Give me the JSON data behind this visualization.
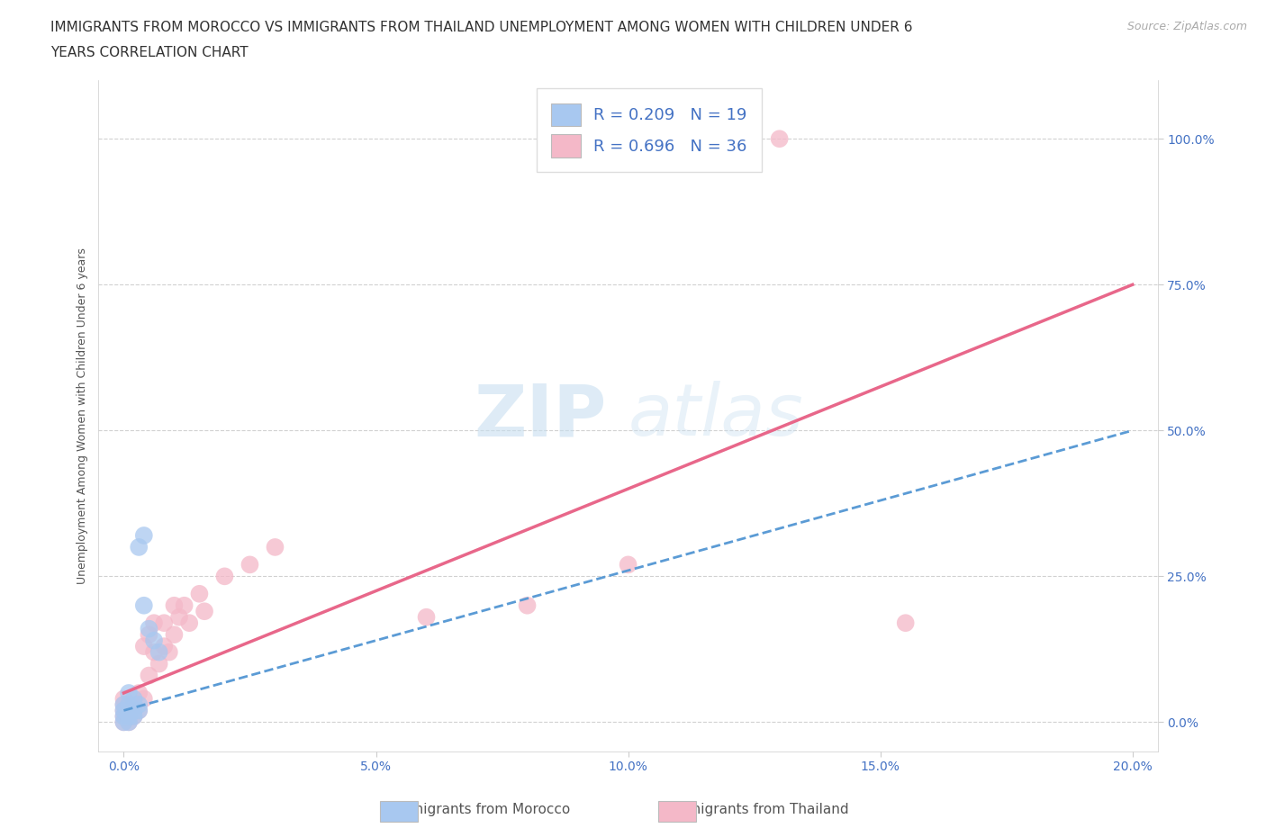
{
  "title_line1": "IMMIGRANTS FROM MOROCCO VS IMMIGRANTS FROM THAILAND UNEMPLOYMENT AMONG WOMEN WITH CHILDREN UNDER 6",
  "title_line2": "YEARS CORRELATION CHART",
  "source": "Source: ZipAtlas.com",
  "xlabel_ticks": [
    "0.0%",
    "5.0%",
    "10.0%",
    "15.0%",
    "20.0%"
  ],
  "xlabel_vals": [
    0.0,
    0.05,
    0.1,
    0.15,
    0.2
  ],
  "ylabel_ticks": [
    "0.0%",
    "25.0%",
    "50.0%",
    "75.0%",
    "100.0%"
  ],
  "ylabel_vals": [
    0.0,
    0.25,
    0.5,
    0.75,
    1.0
  ],
  "xlim": [
    -0.005,
    0.205
  ],
  "ylim": [
    -0.05,
    1.1
  ],
  "ylabel": "Unemployment Among Women with Children Under 6 years",
  "morocco_r": 0.209,
  "morocco_n": 19,
  "thailand_r": 0.696,
  "thailand_n": 36,
  "morocco_color": "#a8c8f0",
  "morocco_line_color": "#5b9bd5",
  "thailand_color": "#f4b8c8",
  "thailand_line_color": "#e8678a",
  "watermark_zip": "ZIP",
  "watermark_atlas": "atlas",
  "morocco_x": [
    0.0,
    0.0,
    0.0,
    0.0,
    0.001,
    0.001,
    0.001,
    0.001,
    0.002,
    0.002,
    0.002,
    0.003,
    0.003,
    0.003,
    0.004,
    0.004,
    0.005,
    0.006,
    0.007
  ],
  "morocco_y": [
    0.0,
    0.01,
    0.02,
    0.03,
    0.0,
    0.01,
    0.03,
    0.05,
    0.01,
    0.02,
    0.04,
    0.02,
    0.03,
    0.3,
    0.32,
    0.2,
    0.16,
    0.14,
    0.12
  ],
  "thailand_x": [
    0.0,
    0.0,
    0.0,
    0.0,
    0.0,
    0.001,
    0.001,
    0.002,
    0.002,
    0.003,
    0.003,
    0.004,
    0.004,
    0.005,
    0.005,
    0.006,
    0.006,
    0.007,
    0.008,
    0.008,
    0.009,
    0.01,
    0.01,
    0.011,
    0.012,
    0.013,
    0.015,
    0.016,
    0.02,
    0.025,
    0.03,
    0.06,
    0.08,
    0.1,
    0.13,
    0.155
  ],
  "thailand_y": [
    0.0,
    0.01,
    0.02,
    0.03,
    0.04,
    0.0,
    0.02,
    0.01,
    0.03,
    0.02,
    0.05,
    0.04,
    0.13,
    0.08,
    0.15,
    0.12,
    0.17,
    0.1,
    0.13,
    0.17,
    0.12,
    0.15,
    0.2,
    0.18,
    0.2,
    0.17,
    0.22,
    0.19,
    0.25,
    0.27,
    0.3,
    0.18,
    0.2,
    0.27,
    1.0,
    0.17
  ],
  "background_color": "#ffffff",
  "grid_color": "#cccccc",
  "title_fontsize": 11,
  "axis_label_fontsize": 9,
  "tick_fontsize": 10,
  "legend_fontsize": 13,
  "source_fontsize": 9,
  "legend_label1": "R = 0.209   N = 19",
  "legend_label2": "R = 0.696   N = 36"
}
